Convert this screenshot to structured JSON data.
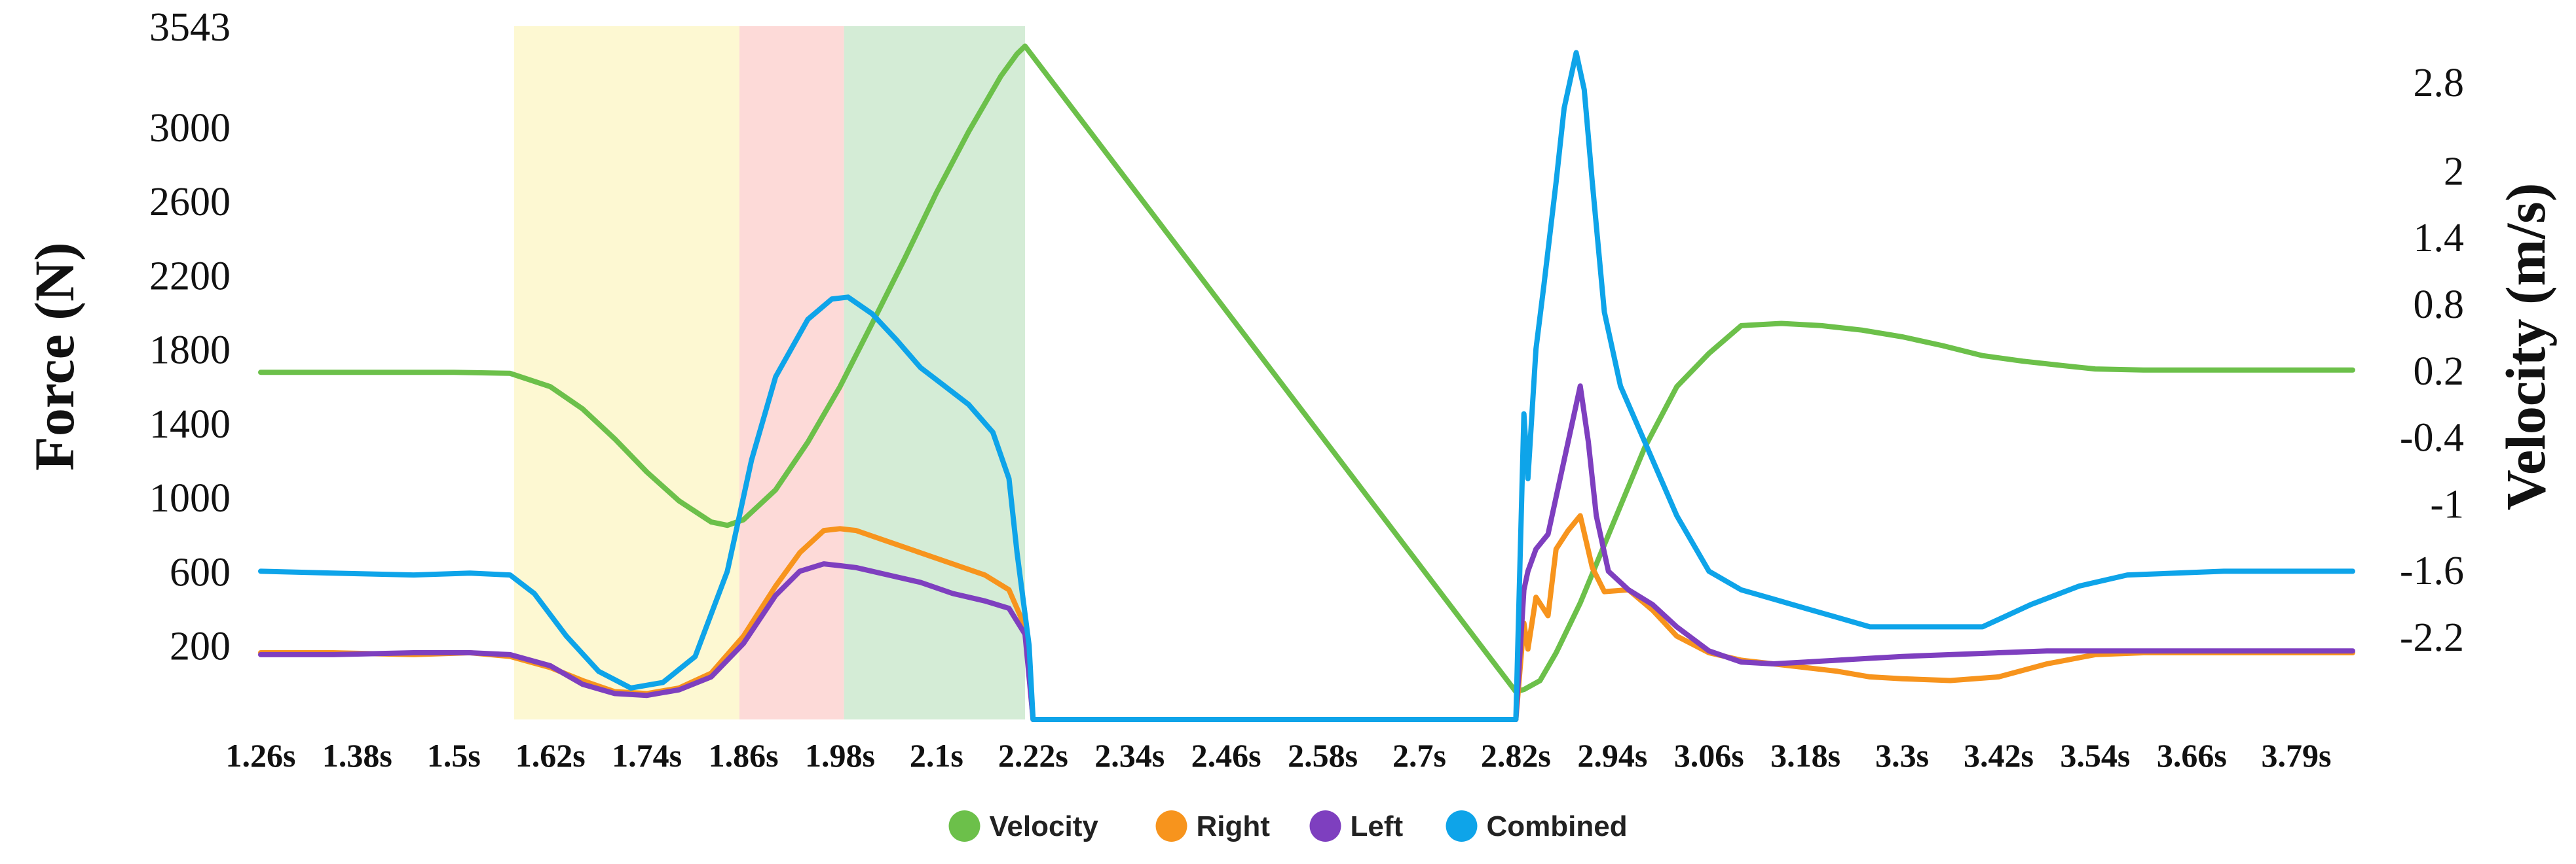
{
  "chart_data": {
    "type": "line",
    "xlabel": "",
    "y_left_label": "Force (N)",
    "y_right_label": "Velocity (m/s)",
    "x_range": [
      1.26,
      3.86
    ],
    "y_left_range": [
      -200,
      3543
    ],
    "y_right_range": [
      -2.95,
      3.3
    ],
    "x_tick_labels": [
      "1.26s",
      "1.38s",
      "1.5s",
      "1.62s",
      "1.74s",
      "1.86s",
      "1.98s",
      "2.1s",
      "2.22s",
      "2.34s",
      "2.46s",
      "2.58s",
      "2.7s",
      "2.82s",
      "2.94s",
      "3.06s",
      "3.18s",
      "3.3s",
      "3.42s",
      "3.54s",
      "3.66s",
      "3.79s"
    ],
    "x_tick_values": [
      1.26,
      1.38,
      1.5,
      1.62,
      1.74,
      1.86,
      1.98,
      2.1,
      2.22,
      2.34,
      2.46,
      2.58,
      2.7,
      2.82,
      2.94,
      3.06,
      3.18,
      3.3,
      3.42,
      3.54,
      3.66,
      3.79
    ],
    "y_left_ticks": [
      200,
      600,
      1000,
      1400,
      1800,
      2200,
      2600,
      3000,
      3543
    ],
    "y_right_ticks": [
      "-2.2",
      "-1.6",
      "-1",
      "-0.4",
      "0.2",
      "0.8",
      "1.4",
      "2",
      "2.8"
    ],
    "y_right_tick_values": [
      -2.2,
      -1.6,
      -1,
      -0.4,
      0.2,
      0.8,
      1.4,
      2,
      2.8
    ],
    "phases": [
      {
        "x0": 1.575,
        "x1": 1.855,
        "color": "#fdf8d2"
      },
      {
        "x0": 1.855,
        "x1": 1.985,
        "color": "#fddad8"
      },
      {
        "x0": 1.985,
        "x1": 2.21,
        "color": "#d4ecd6"
      }
    ],
    "grid": false,
    "legend_position": "bottom-center",
    "legend": [
      {
        "name": "Velocity",
        "color": "#6cc04a"
      },
      {
        "name": "Right",
        "color": "#f7941d"
      },
      {
        "name": "Left",
        "color": "#7e3fbf"
      },
      {
        "name": "Combined",
        "color": "#0ea4e9"
      }
    ],
    "series": [
      {
        "name": "Velocity",
        "axis": "right",
        "color": "#6cc04a",
        "x": [
          1.26,
          1.5,
          1.57,
          1.62,
          1.66,
          1.7,
          1.74,
          1.78,
          1.82,
          1.84,
          1.86,
          1.9,
          1.94,
          1.98,
          2.02,
          2.06,
          2.1,
          2.14,
          2.18,
          2.2,
          2.21,
          2.82,
          2.83,
          2.85,
          2.87,
          2.9,
          2.94,
          2.98,
          3.02,
          3.06,
          3.1,
          3.15,
          3.2,
          3.25,
          3.3,
          3.35,
          3.4,
          3.45,
          3.5,
          3.54,
          3.6,
          3.7,
          3.86
        ],
        "y": [
          0.18,
          0.18,
          0.17,
          0.05,
          -0.15,
          -0.42,
          -0.72,
          -0.98,
          -1.17,
          -1.2,
          -1.15,
          -0.88,
          -0.45,
          0.05,
          0.62,
          1.2,
          1.8,
          2.35,
          2.85,
          3.05,
          3.12,
          -2.7,
          -2.68,
          -2.6,
          -2.35,
          -1.9,
          -1.2,
          -0.5,
          0.05,
          0.35,
          0.6,
          0.62,
          0.6,
          0.56,
          0.5,
          0.42,
          0.33,
          0.28,
          0.24,
          0.21,
          0.2,
          0.2,
          0.2
        ]
      },
      {
        "name": "Right",
        "axis": "left",
        "color": "#f7941d",
        "x": [
          1.26,
          1.35,
          1.45,
          1.52,
          1.57,
          1.62,
          1.66,
          1.7,
          1.74,
          1.78,
          1.82,
          1.86,
          1.9,
          1.93,
          1.96,
          1.98,
          2.0,
          2.04,
          2.08,
          2.12,
          2.16,
          2.19,
          2.21,
          2.22,
          2.82,
          2.83,
          2.835,
          2.845,
          2.86,
          2.87,
          2.885,
          2.9,
          2.915,
          2.93,
          2.96,
          2.99,
          3.02,
          3.06,
          3.1,
          3.14,
          3.18,
          3.22,
          3.26,
          3.3,
          3.36,
          3.42,
          3.48,
          3.54,
          3.6,
          3.7,
          3.86
        ],
        "y": [
          160,
          160,
          150,
          160,
          140,
          80,
          10,
          -50,
          -60,
          -30,
          50,
          250,
          520,
          700,
          820,
          830,
          820,
          760,
          700,
          640,
          580,
          500,
          300,
          -200,
          -200,
          320,
          180,
          460,
          360,
          720,
          820,
          900,
          620,
          490,
          500,
          390,
          250,
          160,
          120,
          100,
          80,
          60,
          30,
          20,
          10,
          30,
          100,
          150,
          160,
          160,
          160
        ]
      },
      {
        "name": "Left",
        "axis": "left",
        "color": "#7e3fbf",
        "x": [
          1.26,
          1.35,
          1.45,
          1.52,
          1.57,
          1.62,
          1.66,
          1.7,
          1.74,
          1.78,
          1.82,
          1.86,
          1.9,
          1.93,
          1.96,
          1.98,
          2.0,
          2.04,
          2.08,
          2.12,
          2.16,
          2.19,
          2.21,
          2.22,
          2.82,
          2.83,
          2.835,
          2.845,
          2.86,
          2.87,
          2.88,
          2.89,
          2.9,
          2.91,
          2.92,
          2.935,
          2.96,
          2.99,
          3.02,
          3.06,
          3.1,
          3.14,
          3.18,
          3.22,
          3.26,
          3.3,
          3.36,
          3.42,
          3.48,
          3.54,
          3.6,
          3.7,
          3.86
        ],
        "y": [
          150,
          150,
          160,
          160,
          150,
          90,
          -10,
          -60,
          -70,
          -40,
          30,
          210,
          470,
          600,
          640,
          630,
          620,
          580,
          540,
          480,
          440,
          400,
          260,
          -200,
          -200,
          500,
          600,
          720,
          800,
          1000,
          1200,
          1400,
          1600,
          1300,
          900,
          600,
          500,
          420,
          300,
          170,
          110,
          100,
          110,
          120,
          130,
          140,
          150,
          160,
          170,
          170,
          170,
          170,
          170
        ]
      },
      {
        "name": "Combined",
        "axis": "left",
        "color": "#0ea4e9",
        "x": [
          1.26,
          1.35,
          1.45,
          1.52,
          1.57,
          1.6,
          1.64,
          1.68,
          1.72,
          1.76,
          1.8,
          1.84,
          1.87,
          1.9,
          1.94,
          1.97,
          1.99,
          2.02,
          2.05,
          2.08,
          2.11,
          2.14,
          2.17,
          2.19,
          2.2,
          2.215,
          2.22,
          2.82,
          2.83,
          2.835,
          2.845,
          2.855,
          2.87,
          2.88,
          2.895,
          2.905,
          2.915,
          2.93,
          2.95,
          2.98,
          3.02,
          3.06,
          3.1,
          3.14,
          3.18,
          3.22,
          3.26,
          3.3,
          3.34,
          3.4,
          3.46,
          3.52,
          3.58,
          3.7,
          3.86
        ],
        "y": [
          600,
          590,
          580,
          590,
          580,
          480,
          250,
          60,
          -30,
          0,
          140,
          600,
          1200,
          1650,
          1960,
          2070,
          2080,
          1990,
          1850,
          1700,
          1600,
          1500,
          1350,
          1100,
          700,
          200,
          -200,
          -200,
          1450,
          1100,
          1800,
          2150,
          2700,
          3100,
          3400,
          3200,
          2700,
          2000,
          1600,
          1300,
          900,
          600,
          500,
          450,
          400,
          350,
          300,
          300,
          300,
          300,
          420,
          520,
          580,
          600,
          600
        ]
      }
    ]
  }
}
